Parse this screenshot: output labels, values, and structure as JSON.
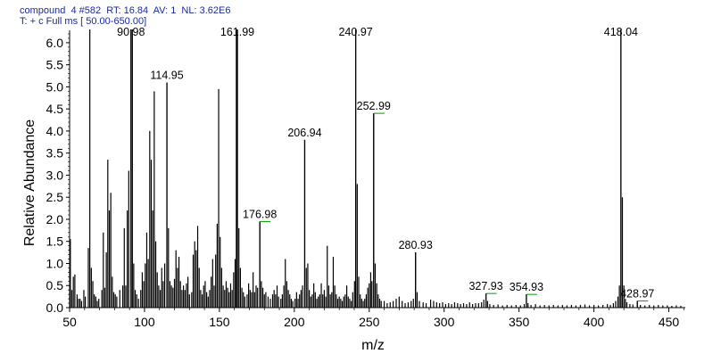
{
  "header": {
    "line1": "compound  4 #582  RT: 16.84  AV: 1  NL: 3.62E6",
    "line2": "T: + c Full ms [ 50.00-650.00]"
  },
  "chart_data": {
    "type": "bar",
    "title": "",
    "xlabel": "m/z",
    "ylabel": "Relative Abundance",
    "xlim": [
      50,
      461
    ],
    "ylim": [
      0,
      6.2
    ],
    "xticks": [
      "50",
      "100",
      "150",
      "200",
      "250",
      "300",
      "350",
      "400",
      "450"
    ],
    "yticks": [
      "0.0",
      "0.5",
      "1.0",
      "1.5",
      "2.0",
      "2.5",
      "3.0",
      "3.5",
      "4.0",
      "4.5",
      "5.0",
      "5.5",
      "6.0"
    ],
    "grid": false,
    "bar_color": "#000000",
    "label_tick_color": "#00a000",
    "labeled_peaks": [
      {
        "mz": 90.98,
        "label": "90.98",
        "value": 6.3
      },
      {
        "mz": 114.95,
        "label": "114.95",
        "value": 5.1
      },
      {
        "mz": 161.99,
        "label": "161.99",
        "value": 6.3
      },
      {
        "mz": 176.98,
        "label": "176.98",
        "value": 1.95
      },
      {
        "mz": 206.94,
        "label": "206.94",
        "value": 3.8
      },
      {
        "mz": 240.97,
        "label": "240.97",
        "value": 6.3
      },
      {
        "mz": 252.99,
        "label": "252.99",
        "value": 4.4
      },
      {
        "mz": 280.93,
        "label": "280.93",
        "value": 1.25
      },
      {
        "mz": 327.93,
        "label": "327.93",
        "value": 0.32
      },
      {
        "mz": 354.93,
        "label": "354.93",
        "value": 0.3
      },
      {
        "mz": 418.04,
        "label": "418.04",
        "value": 6.3
      },
      {
        "mz": 428.97,
        "label": "428.97",
        "value": 0.15
      }
    ],
    "peaks": [
      [
        50.5,
        1.55
      ],
      [
        51.5,
        0.4
      ],
      [
        52.5,
        0.7
      ],
      [
        53.5,
        0.75
      ],
      [
        55,
        0.3
      ],
      [
        56,
        0.2
      ],
      [
        57,
        0.2
      ],
      [
        58,
        0.15
      ],
      [
        59.5,
        0.4
      ],
      [
        60.5,
        0.25
      ],
      [
        62.5,
        1.35
      ],
      [
        63.5,
        6.3
      ],
      [
        64.5,
        0.9
      ],
      [
        65.5,
        0.6
      ],
      [
        66.5,
        0.3
      ],
      [
        67.5,
        0.25
      ],
      [
        68.5,
        0.15
      ],
      [
        69.5,
        0.2
      ],
      [
        71.5,
        0.4
      ],
      [
        72.5,
        1.7
      ],
      [
        73.5,
        0.45
      ],
      [
        74.5,
        1.25
      ],
      [
        75.5,
        3.35
      ],
      [
        76.5,
        2.2
      ],
      [
        77.5,
        2.6
      ],
      [
        78.5,
        0.7
      ],
      [
        79.5,
        0.35
      ],
      [
        80.5,
        0.3
      ],
      [
        81.5,
        0.25
      ],
      [
        83.5,
        0.4
      ],
      [
        85.5,
        0.5
      ],
      [
        86.5,
        1.8
      ],
      [
        87.5,
        0.5
      ],
      [
        88.5,
        2.2
      ],
      [
        89.5,
        3.1
      ],
      [
        90.98,
        6.3
      ],
      [
        91.9,
        6.3
      ],
      [
        92.8,
        1.0
      ],
      [
        93.8,
        0.4
      ],
      [
        94.8,
        0.3
      ],
      [
        96,
        0.2
      ],
      [
        97.5,
        0.4
      ],
      [
        98.5,
        0.8
      ],
      [
        99.5,
        0.6
      ],
      [
        100.5,
        1.0
      ],
      [
        101.5,
        1.7
      ],
      [
        102.5,
        1.1
      ],
      [
        103.5,
        4.0
      ],
      [
        104.5,
        3.35
      ],
      [
        105.5,
        2.2
      ],
      [
        106.5,
        4.9
      ],
      [
        107.5,
        1.5
      ],
      [
        108.5,
        0.8
      ],
      [
        109.5,
        0.5
      ],
      [
        110.5,
        0.4
      ],
      [
        111.5,
        0.9
      ],
      [
        112.5,
        0.6
      ],
      [
        113.5,
        1.0
      ],
      [
        114.95,
        5.1
      ],
      [
        116,
        1.8
      ],
      [
        117,
        0.6
      ],
      [
        118,
        0.5
      ],
      [
        119,
        0.45
      ],
      [
        120,
        0.65
      ],
      [
        121,
        1.3
      ],
      [
        122,
        0.9
      ],
      [
        123,
        1.15
      ],
      [
        124,
        0.6
      ],
      [
        125,
        0.4
      ],
      [
        126,
        0.5
      ],
      [
        127,
        0.4
      ],
      [
        128,
        0.55
      ],
      [
        129,
        0.7
      ],
      [
        130,
        0.3
      ],
      [
        131.5,
        0.35
      ],
      [
        132.5,
        1.2
      ],
      [
        133.5,
        1.5
      ],
      [
        134.5,
        1.3
      ],
      [
        135.5,
        1.85
      ],
      [
        136.5,
        0.9
      ],
      [
        137.5,
        0.4
      ],
      [
        138.5,
        0.3
      ],
      [
        139.5,
        0.5
      ],
      [
        140.5,
        0.6
      ],
      [
        141.5,
        0.35
      ],
      [
        142.5,
        0.25
      ],
      [
        143.5,
        0.4
      ],
      [
        144.5,
        0.7
      ],
      [
        145.5,
        1.1
      ],
      [
        146.5,
        0.5
      ],
      [
        147.5,
        1.2
      ],
      [
        148.5,
        1.9
      ],
      [
        149.5,
        4.95
      ],
      [
        150.5,
        1.6
      ],
      [
        151.5,
        0.9
      ],
      [
        152.5,
        0.5
      ],
      [
        153.5,
        0.4
      ],
      [
        154.5,
        0.6
      ],
      [
        155.5,
        0.45
      ],
      [
        156.5,
        0.35
      ],
      [
        157.5,
        0.55
      ],
      [
        158.5,
        0.4
      ],
      [
        159.5,
        0.8
      ],
      [
        160.5,
        1.1
      ],
      [
        161.3,
        6.3
      ],
      [
        161.99,
        6.3
      ],
      [
        163,
        1.8
      ],
      [
        164,
        0.9
      ],
      [
        165,
        0.45
      ],
      [
        166,
        0.35
      ],
      [
        167,
        0.25
      ],
      [
        168.5,
        0.3
      ],
      [
        169.5,
        0.55
      ],
      [
        170.5,
        0.4
      ],
      [
        171.5,
        0.35
      ],
      [
        172.5,
        0.8
      ],
      [
        173.5,
        0.35
      ],
      [
        174.5,
        0.5
      ],
      [
        175.5,
        0.45
      ],
      [
        176.98,
        1.95
      ],
      [
        178,
        0.6
      ],
      [
        179,
        0.45
      ],
      [
        180,
        0.3
      ],
      [
        181,
        0.35
      ],
      [
        182.5,
        0.25
      ],
      [
        184,
        0.2
      ],
      [
        185.5,
        0.3
      ],
      [
        186.5,
        0.4
      ],
      [
        187.5,
        0.3
      ],
      [
        188.5,
        0.5
      ],
      [
        189.5,
        0.25
      ],
      [
        191,
        0.2
      ],
      [
        192,
        0.3
      ],
      [
        193,
        0.5
      ],
      [
        194,
        1.1
      ],
      [
        195,
        0.6
      ],
      [
        196,
        0.4
      ],
      [
        197,
        0.3
      ],
      [
        198,
        0.2
      ],
      [
        199,
        0.15
      ],
      [
        200.5,
        0.2
      ],
      [
        201.5,
        0.35
      ],
      [
        202.5,
        0.2
      ],
      [
        203.5,
        0.3
      ],
      [
        204.5,
        0.4
      ],
      [
        205.5,
        0.5
      ],
      [
        206.94,
        3.8
      ],
      [
        208,
        0.9
      ],
      [
        209,
        1.0
      ],
      [
        210,
        0.4
      ],
      [
        211,
        0.25
      ],
      [
        212,
        0.3
      ],
      [
        213,
        0.55
      ],
      [
        214,
        0.35
      ],
      [
        215,
        0.2
      ],
      [
        216,
        0.25
      ],
      [
        217,
        0.3
      ],
      [
        218,
        0.55
      ],
      [
        219,
        0.3
      ],
      [
        220,
        0.4
      ],
      [
        221,
        0.25
      ],
      [
        222,
        1.4
      ],
      [
        223,
        0.5
      ],
      [
        224,
        0.3
      ],
      [
        225,
        0.35
      ],
      [
        226,
        1.15
      ],
      [
        227,
        0.5
      ],
      [
        228,
        0.3
      ],
      [
        229,
        0.2
      ],
      [
        230,
        0.25
      ],
      [
        231,
        0.2
      ],
      [
        232,
        0.15
      ],
      [
        233,
        0.25
      ],
      [
        234,
        0.3
      ],
      [
        235,
        0.5
      ],
      [
        236,
        0.25
      ],
      [
        237,
        0.2
      ],
      [
        238,
        0.15
      ],
      [
        239,
        0.35
      ],
      [
        240.2,
        0.6
      ],
      [
        240.97,
        6.3
      ],
      [
        242,
        2.8
      ],
      [
        243,
        0.7
      ],
      [
        244,
        0.3
      ],
      [
        245,
        0.2
      ],
      [
        246,
        0.15
      ],
      [
        247,
        0.2
      ],
      [
        248,
        0.3
      ],
      [
        249,
        0.45
      ],
      [
        250,
        0.55
      ],
      [
        251,
        0.8
      ],
      [
        251.8,
        0.6
      ],
      [
        252.99,
        4.4
      ],
      [
        254,
        1.0
      ],
      [
        255,
        0.55
      ],
      [
        256,
        0.3
      ],
      [
        257,
        0.2
      ],
      [
        258,
        0.15
      ],
      [
        260,
        0.15
      ],
      [
        262,
        0.1
      ],
      [
        264,
        0.12
      ],
      [
        266,
        0.15
      ],
      [
        268,
        0.2
      ],
      [
        270,
        0.25
      ],
      [
        272,
        0.15
      ],
      [
        274,
        0.1
      ],
      [
        276,
        0.12
      ],
      [
        278,
        0.15
      ],
      [
        279.5,
        0.2
      ],
      [
        280.93,
        1.25
      ],
      [
        282,
        0.35
      ],
      [
        283.5,
        0.15
      ],
      [
        286,
        0.12
      ],
      [
        288,
        0.1
      ],
      [
        291,
        0.18
      ],
      [
        293,
        0.15
      ],
      [
        295,
        0.12
      ],
      [
        297,
        0.1
      ],
      [
        299,
        0.12
      ],
      [
        301,
        0.08
      ],
      [
        303,
        0.1
      ],
      [
        305,
        0.08
      ],
      [
        307,
        0.12
      ],
      [
        309,
        0.1
      ],
      [
        311,
        0.08
      ],
      [
        313,
        0.1
      ],
      [
        315,
        0.08
      ],
      [
        317,
        0.12
      ],
      [
        319,
        0.08
      ],
      [
        321,
        0.1
      ],
      [
        323,
        0.1
      ],
      [
        325,
        0.12
      ],
      [
        326.5,
        0.18
      ],
      [
        327.93,
        0.32
      ],
      [
        329,
        0.15
      ],
      [
        330.5,
        0.08
      ],
      [
        333,
        0.06
      ],
      [
        336,
        0.07
      ],
      [
        339,
        0.05
      ],
      [
        342,
        0.06
      ],
      [
        345,
        0.05
      ],
      [
        348,
        0.06
      ],
      [
        351,
        0.05
      ],
      [
        353.5,
        0.08
      ],
      [
        354.93,
        0.3
      ],
      [
        356,
        0.1
      ],
      [
        358,
        0.06
      ],
      [
        361,
        0.08
      ],
      [
        364,
        0.05
      ],
      [
        367,
        0.06
      ],
      [
        370,
        0.05
      ],
      [
        373,
        0.06
      ],
      [
        376,
        0.05
      ],
      [
        379,
        0.06
      ],
      [
        382,
        0.05
      ],
      [
        385,
        0.06
      ],
      [
        388,
        0.05
      ],
      [
        391,
        0.06
      ],
      [
        394,
        0.07
      ],
      [
        397,
        0.05
      ],
      [
        400,
        0.06
      ],
      [
        403,
        0.05
      ],
      [
        406,
        0.06
      ],
      [
        409,
        0.08
      ],
      [
        411,
        0.06
      ],
      [
        413,
        0.1
      ],
      [
        414.5,
        0.15
      ],
      [
        416,
        0.25
      ],
      [
        417,
        0.5
      ],
      [
        418.04,
        6.3
      ],
      [
        419,
        2.5
      ],
      [
        420,
        0.5
      ],
      [
        421,
        0.2
      ],
      [
        422,
        0.12
      ],
      [
        424,
        0.08
      ],
      [
        426,
        0.07
      ],
      [
        428.97,
        0.15
      ],
      [
        431,
        0.06
      ],
      [
        434,
        0.05
      ],
      [
        437,
        0.06
      ],
      [
        440,
        0.05
      ],
      [
        443,
        0.06
      ],
      [
        446,
        0.05
      ],
      [
        449,
        0.05
      ],
      [
        452,
        0.04
      ],
      [
        455,
        0.05
      ],
      [
        458,
        0.04
      ]
    ]
  }
}
